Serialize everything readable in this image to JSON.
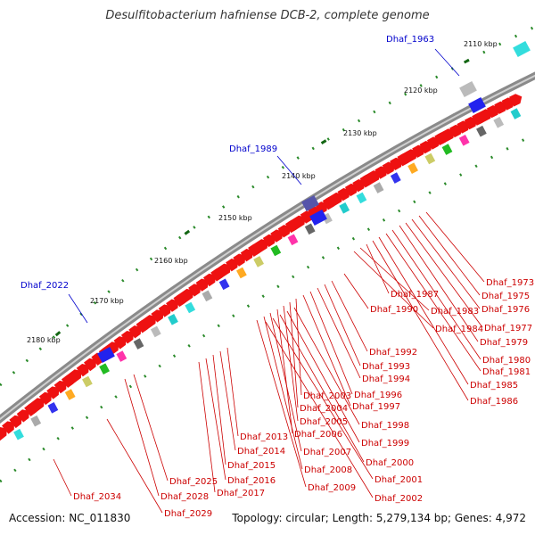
{
  "title": "Desulfitobacterium hafniense DCB-2, complete genome",
  "footer": {
    "accession": "Accession: NC_011830",
    "summary": "Topology: circular; Length: 5,279,134 bp; Genes: 4,972"
  },
  "scale_labels": [
    "2110 kbp",
    "2120 kbp",
    "2130 kbp",
    "2140 kbp",
    "2150 kbp",
    "2160 kbp",
    "2170 kbp",
    "2180 kbp"
  ],
  "blue_labels": [
    "Dhaf_1963",
    "Dhaf_1989",
    "Dhaf_2022"
  ],
  "red_labels": [
    "Dhaf_1973",
    "Dhaf_1975",
    "Dhaf_1976",
    "Dhaf_1977",
    "Dhaf_1979",
    "Dhaf_1980",
    "Dhaf_1981",
    "Dhaf_1985",
    "Dhaf_1986",
    "Dhaf_1987",
    "Dhaf_1983",
    "Dhaf_1984",
    "Dhaf_1990",
    "Dhaf_1992",
    "Dhaf_1993",
    "Dhaf_1994",
    "Dhaf_1996",
    "Dhaf_1997",
    "Dhaf_2003",
    "Dhaf_2004",
    "Dhaf_2005",
    "Dhaf_2006",
    "Dhaf_2007",
    "Dhaf_2008",
    "Dhaf_2009",
    "Dhaf_1998",
    "Dhaf_1999",
    "Dhaf_2000",
    "Dhaf_2001",
    "Dhaf_2002",
    "Dhaf_2013",
    "Dhaf_2014",
    "Dhaf_2015",
    "Dhaf_2016",
    "Dhaf_2017",
    "Dhaf_2025",
    "Dhaf_2028",
    "Dhaf_2029",
    "Dhaf_2034"
  ],
  "colors": {
    "backbone": "#8a8a8a",
    "gene_red": "#ee1111",
    "scale_dot": "#1a7a1a",
    "label_red": "#cc0000",
    "label_blue": "#0000cc"
  }
}
